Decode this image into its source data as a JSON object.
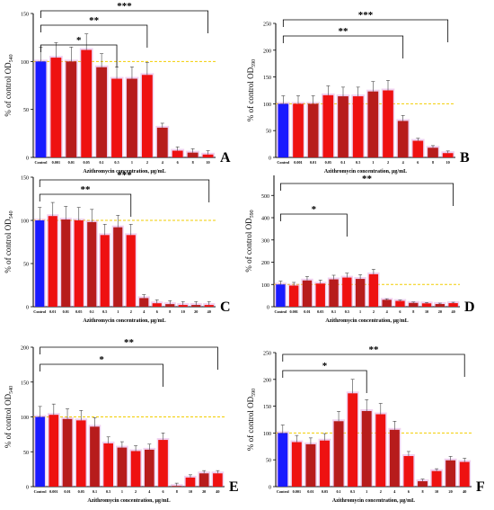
{
  "figure": {
    "colors": {
      "control": "#1a1aff",
      "bar_red": "#ee1111",
      "bar_dark": "#b71c1c",
      "refline": "#f2cd00",
      "halo": "#d57bd5"
    }
  },
  "chart_data": [
    {
      "panel": "A",
      "type": "bar",
      "ylabel_main": "% of control OD",
      "ylabel_sub": "540",
      "xlabel": "Azithromycin concentration, µg/mL",
      "categories": [
        "Control",
        "0.001",
        "0.01",
        "0.05",
        "0.1",
        "0.5",
        "1",
        "2",
        "4",
        "6",
        "8",
        "10"
      ],
      "values": [
        100,
        104,
        100,
        112,
        94,
        82,
        82,
        86,
        31,
        7,
        5,
        3
      ],
      "yticks": [
        "0",
        "50",
        "100",
        "150"
      ],
      "ylim": [
        0,
        150
      ],
      "refline": 100,
      "sig": [
        {
          "label": "*"
        },
        {
          "label": "**"
        },
        {
          "label": "***"
        }
      ]
    },
    {
      "panel": "B",
      "type": "bar",
      "ylabel_main": "% of control OD",
      "ylabel_sub": "590",
      "xlabel": "Azithromycin concentration, µg/mL",
      "categories": [
        "Control",
        "0.001",
        "0.01",
        "0.05",
        "0.1",
        "0.5",
        "1",
        "2",
        "4",
        "6",
        "8",
        "10"
      ],
      "values": [
        100,
        100,
        100,
        116,
        114,
        114,
        123,
        125,
        68,
        31,
        18,
        8
      ],
      "yticks": [
        "0",
        "50",
        "100",
        "150",
        "200",
        "250"
      ],
      "ylim": [
        0,
        250
      ],
      "refline": 100,
      "sig": [
        {
          "label": "**"
        },
        {
          "label": "***"
        }
      ]
    },
    {
      "panel": "C",
      "type": "bar",
      "ylabel_main": "% of control OD",
      "ylabel_sub": "540",
      "xlabel": "Azithromycin concentration, µg/mL",
      "categories": [
        "Control",
        "0.01",
        "0.01",
        "0.05",
        "0.1",
        "0.5",
        "1",
        "2",
        "4",
        "6",
        "8",
        "10",
        "20",
        "40"
      ],
      "values": [
        100,
        105,
        101,
        100,
        98,
        83,
        92,
        83,
        10,
        4,
        3,
        2,
        2,
        2
      ],
      "yticks": [
        "0",
        "50",
        "100",
        "150"
      ],
      "ylim": [
        0,
        150
      ],
      "refline": 100,
      "sig": [
        {
          "label": "**"
        },
        {
          "label": "***"
        }
      ]
    },
    {
      "panel": "D",
      "type": "bar",
      "ylabel_main": "% of control OD",
      "ylabel_sub": "590",
      "xlabel": "Azithromycin concentration, µg/mL",
      "categories": [
        "Control",
        "0.001",
        "0.01",
        "0.05",
        "0.1",
        "0.5",
        "1",
        "2",
        "4",
        "6",
        "8",
        "10",
        "20",
        "40"
      ],
      "values": [
        100,
        95,
        118,
        104,
        123,
        131,
        125,
        146,
        31,
        26,
        17,
        15,
        12,
        16
      ],
      "yticks": [
        "0",
        "100",
        "200",
        "300",
        "400",
        "500"
      ],
      "ylim": [
        0,
        590
      ],
      "refline": 100,
      "sig": [
        {
          "label": "*"
        },
        {
          "label": "**"
        }
      ]
    },
    {
      "panel": "E",
      "type": "bar",
      "ylabel_main": "% of control OD",
      "ylabel_sub": "540",
      "xlabel": "Azithromycin concentration, µg/mL",
      "categories": [
        "Control",
        "0.001",
        "0.01",
        "0.05",
        "0.1",
        "0.5",
        "1",
        "2",
        "4",
        "6",
        "8",
        "10",
        "20",
        "40"
      ],
      "values": [
        100,
        103,
        97,
        95,
        86,
        62,
        56,
        51,
        53,
        67,
        1,
        13,
        19,
        19
      ],
      "yticks": [
        "0",
        "50",
        "100",
        "150",
        "200"
      ],
      "ylim": [
        0,
        200
      ],
      "refline": 100,
      "sig": [
        {
          "label": "*"
        },
        {
          "label": "**"
        }
      ]
    },
    {
      "panel": "F",
      "type": "bar",
      "ylabel_main": "% of control OD",
      "ylabel_sub": "590",
      "xlabel": "Azithromycin concentration, µg/mL",
      "categories": [
        "Control",
        "0.001",
        "0.01",
        "0.05",
        "0.1",
        "0.5",
        "1",
        "2",
        "4",
        "6",
        "8",
        "10",
        "20",
        "40"
      ],
      "values": [
        100,
        83,
        79,
        86,
        122,
        174,
        141,
        135,
        106,
        57,
        10,
        29,
        49,
        46
      ],
      "yticks": [
        "0",
        "50",
        "100",
        "150",
        "200",
        "250"
      ],
      "ylim": [
        0,
        250
      ],
      "refline": 100,
      "sig": [
        {
          "label": "*"
        },
        {
          "label": "**"
        }
      ]
    }
  ]
}
